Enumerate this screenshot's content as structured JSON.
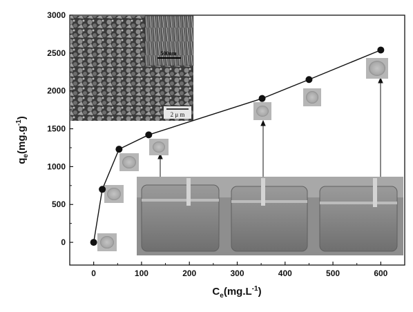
{
  "chart_data": {
    "type": "scatter",
    "xlabel": "C",
    "xlabel_sub": "e",
    "xlabel_unit": "(mg.L",
    "xlabel_sup": "-1",
    "xlabel_close": ")",
    "ylabel": "q",
    "ylabel_sub": "e",
    "ylabel_unit": "(mg.g",
    "ylabel_sup": "-1",
    "ylabel_close": ")",
    "xlim": [
      -50,
      650
    ],
    "ylim": [
      -300,
      3000
    ],
    "x_ticks": [
      0,
      100,
      200,
      300,
      400,
      500,
      600
    ],
    "y_ticks": [
      0,
      500,
      1000,
      1500,
      2000,
      2500,
      3000
    ],
    "series": [
      {
        "x": [
          0,
          18,
          53,
          115,
          352,
          450,
          600
        ],
        "y": [
          0,
          700,
          1230,
          1420,
          1900,
          2150,
          2540
        ]
      }
    ],
    "line_connected": true,
    "grid": false
  },
  "insets": {
    "sem_scale_label": "2 μ m",
    "sem_inset_scale_label": "500nm",
    "photo_count": 3
  },
  "colors": {
    "marker": "#111111",
    "line": "#111111",
    "axis": "#111111"
  }
}
